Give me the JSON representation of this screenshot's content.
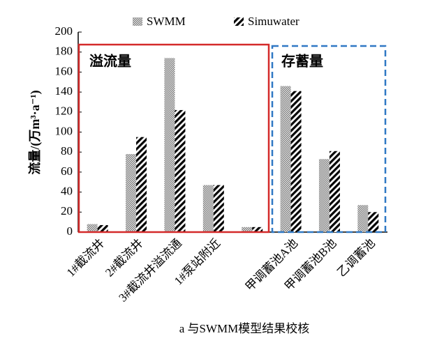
{
  "chart_data": {
    "type": "bar",
    "categories": [
      "1#截流井",
      "2#截流井",
      "3#截流井溢流通",
      "1#泵站附近",
      null,
      "甲调蓄池A池",
      "甲调蓄池B池",
      "乙调蓄池"
    ],
    "series": [
      {
        "name": "SWMM",
        "color": "#7a7a7a",
        "values": [
          8,
          78,
          174,
          47,
          5,
          146,
          73,
          27
        ]
      },
      {
        "name": "Simuwater",
        "color": "#000000",
        "values": [
          7,
          95,
          122,
          47,
          5,
          141,
          81,
          20
        ]
      }
    ],
    "ylim": [
      0,
      200
    ],
    "yticks": [
      0,
      20,
      40,
      60,
      80,
      100,
      120,
      140,
      160,
      180,
      200
    ],
    "y_label": "流量/(万m³·a⁻¹)",
    "caption": "a  与SWMM模型结果校核",
    "annotations": [
      {
        "text": "溢流量",
        "color": "#d42a2a",
        "style": "solid"
      },
      {
        "text": "存蓄量",
        "color": "#2f78c4",
        "style": "dashed"
      }
    ],
    "grid": false,
    "legend": "top"
  }
}
